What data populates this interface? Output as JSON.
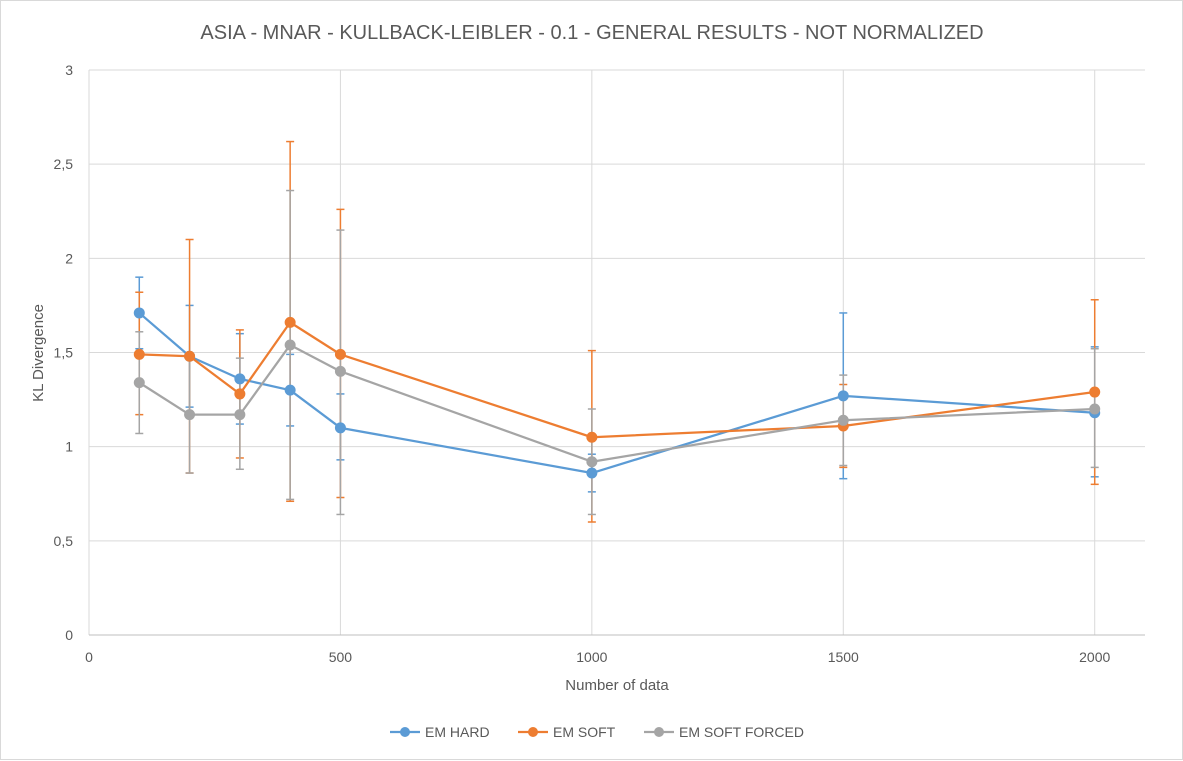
{
  "chart_data": {
    "type": "line",
    "title": "ASIA - MNAR - KULLBACK-LEIBLER - 0.1 - GENERAL RESULTS - NOT NORMALIZED",
    "xlabel": "Number of data",
    "ylabel": "KL Divergence",
    "xlim": [
      0,
      2100
    ],
    "ylim": [
      0,
      3
    ],
    "x_ticks": [
      0,
      500,
      1000,
      1500,
      2000
    ],
    "x_tick_labels": [
      "0",
      "500",
      "1000",
      "1500",
      "2000"
    ],
    "y_ticks": [
      0,
      0.5,
      1,
      1.5,
      2,
      2.5,
      3
    ],
    "y_tick_labels": [
      "0",
      "0,5",
      "1",
      "1,5",
      "2",
      "2,5",
      "3"
    ],
    "grid": true,
    "legend_position": "bottom",
    "x": [
      100,
      200,
      300,
      400,
      500,
      1000,
      1500,
      2000
    ],
    "series": [
      {
        "name": "EM HARD",
        "color": "#5b9bd5",
        "values": [
          1.71,
          1.48,
          1.36,
          1.3,
          1.1,
          0.86,
          1.27,
          1.18
        ],
        "err_low": [
          1.52,
          1.21,
          1.12,
          1.11,
          0.93,
          0.76,
          0.83,
          0.84
        ],
        "err_high": [
          1.9,
          1.75,
          1.6,
          1.49,
          1.28,
          0.96,
          1.71,
          1.53
        ]
      },
      {
        "name": "EM SOFT",
        "color": "#ed7d31",
        "values": [
          1.49,
          1.48,
          1.28,
          1.66,
          1.49,
          1.05,
          1.11,
          1.29
        ],
        "err_low": [
          1.17,
          0.86,
          0.94,
          0.71,
          0.73,
          0.6,
          0.89,
          0.8
        ],
        "err_high": [
          1.82,
          2.1,
          1.62,
          2.62,
          2.26,
          1.51,
          1.33,
          1.78
        ]
      },
      {
        "name": "EM SOFT FORCED",
        "color": "#a5a5a5",
        "values": [
          1.34,
          1.17,
          1.17,
          1.54,
          1.4,
          0.92,
          1.14,
          1.2
        ],
        "err_low": [
          1.07,
          0.86,
          0.88,
          0.72,
          0.64,
          0.64,
          0.9,
          0.89
        ],
        "err_high": [
          1.61,
          1.48,
          1.47,
          2.36,
          2.15,
          1.2,
          1.38,
          1.52
        ]
      }
    ]
  }
}
